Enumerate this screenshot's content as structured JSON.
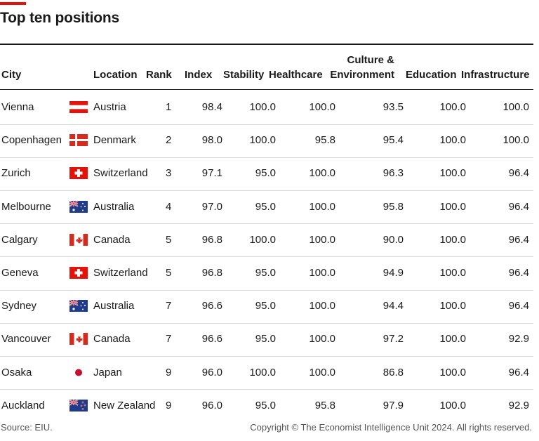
{
  "title": "Top ten positions",
  "columns": {
    "city": "City",
    "location": "Location",
    "rank": "Rank",
    "index": "Index",
    "stability": "Stability",
    "healthcare": "Healthcare",
    "culture_line1": "Culture &",
    "culture_line2": "Environment",
    "education": "Education",
    "infrastructure": "Infrastructure"
  },
  "rows": [
    {
      "city": "Vienna",
      "flag": "austria-flag",
      "location": "Austria",
      "rank": "1",
      "index": "98.4",
      "stability": "100.0",
      "healthcare": "100.0",
      "culture": "93.5",
      "education": "100.0",
      "infrastructure": "100.0"
    },
    {
      "city": "Copenhagen",
      "flag": "denmark-flag",
      "location": "Denmark",
      "rank": "2",
      "index": "98.0",
      "stability": "100.0",
      "healthcare": "95.8",
      "culture": "95.4",
      "education": "100.0",
      "infrastructure": "100.0"
    },
    {
      "city": "Zurich",
      "flag": "switzerland-flag",
      "location": "Switzerland",
      "rank": "3",
      "index": "97.1",
      "stability": "95.0",
      "healthcare": "100.0",
      "culture": "96.3",
      "education": "100.0",
      "infrastructure": "96.4"
    },
    {
      "city": "Melbourne",
      "flag": "australia-flag",
      "location": "Australia",
      "rank": "4",
      "index": "97.0",
      "stability": "95.0",
      "healthcare": "100.0",
      "culture": "95.8",
      "education": "100.0",
      "infrastructure": "96.4"
    },
    {
      "city": "Calgary",
      "flag": "canada-flag",
      "location": "Canada",
      "rank": "5",
      "index": "96.8",
      "stability": "100.0",
      "healthcare": "100.0",
      "culture": "90.0",
      "education": "100.0",
      "infrastructure": "96.4"
    },
    {
      "city": "Geneva",
      "flag": "switzerland-flag",
      "location": "Switzerland",
      "rank": "5",
      "index": "96.8",
      "stability": "95.0",
      "healthcare": "100.0",
      "culture": "94.9",
      "education": "100.0",
      "infrastructure": "96.4"
    },
    {
      "city": "Sydney",
      "flag": "australia-flag",
      "location": "Australia",
      "rank": "7",
      "index": "96.6",
      "stability": "95.0",
      "healthcare": "100.0",
      "culture": "94.4",
      "education": "100.0",
      "infrastructure": "96.4"
    },
    {
      "city": "Vancouver",
      "flag": "canada-flag",
      "location": "Canada",
      "rank": "7",
      "index": "96.6",
      "stability": "95.0",
      "healthcare": "100.0",
      "culture": "97.2",
      "education": "100.0",
      "infrastructure": "92.9"
    },
    {
      "city": "Osaka",
      "flag": "japan-flag",
      "location": "Japan",
      "rank": "9",
      "index": "96.0",
      "stability": "100.0",
      "healthcare": "100.0",
      "culture": "86.8",
      "education": "100.0",
      "infrastructure": "96.4"
    },
    {
      "city": "Auckland",
      "flag": "new-zealand-flag",
      "location": "New Zealand",
      "rank": "9",
      "index": "96.0",
      "stability": "95.0",
      "healthcare": "95.8",
      "culture": "97.9",
      "education": "100.0",
      "infrastructure": "92.9"
    }
  ],
  "footer": {
    "source": "Source: EIU.",
    "copyright": "Copyright © The Economist Intelligence Unit 2024. All rights reserved."
  },
  "colors": {
    "accent": "#e3120b",
    "rule": "#1a1a1a",
    "separator": "#d9d9d9"
  }
}
